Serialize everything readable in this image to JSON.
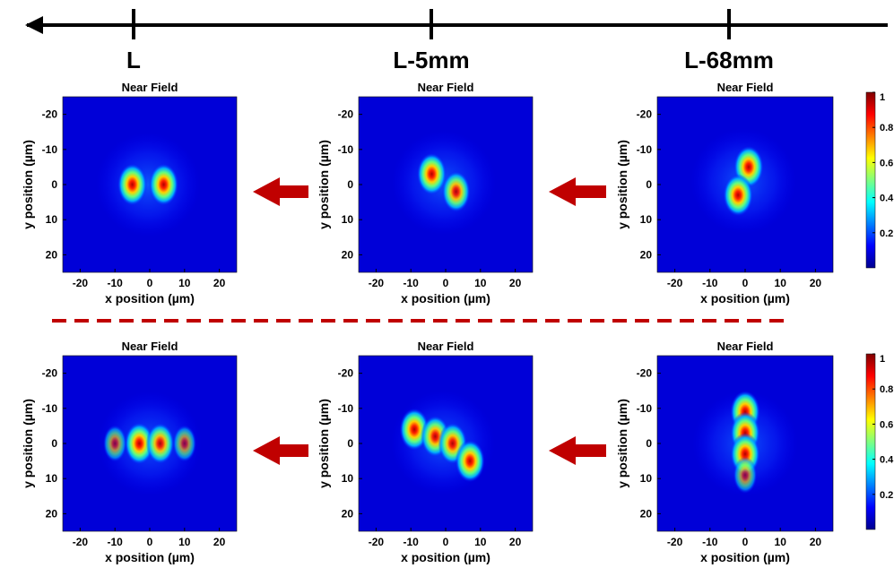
{
  "figure": {
    "stage_labels": [
      "L",
      "L-5mm",
      "L-68mm"
    ],
    "plot_title": "Near Field",
    "xlabel": "x position (µm)",
    "ylabel": "y position (µm)"
  },
  "chart_data": [
    {
      "type": "heatmap",
      "row": 1,
      "stage": "L",
      "title": "Near Field",
      "xlabel": "x position (µm)",
      "ylabel": "y position (µm)",
      "xlim": [
        -25,
        25
      ],
      "ylim": [
        -25,
        25
      ],
      "xticks": [
        -20,
        -10,
        0,
        10,
        20
      ],
      "yticks": [
        -20,
        -10,
        0,
        10,
        20
      ],
      "y_axis_inverted": true,
      "peaks": [
        {
          "x": -5,
          "y": 0,
          "intensity": 1.0
        },
        {
          "x": 4,
          "y": 0,
          "intensity": 1.0
        }
      ]
    },
    {
      "type": "heatmap",
      "row": 1,
      "stage": "L-5mm",
      "title": "Near Field",
      "xlabel": "x position (µm)",
      "ylabel": "y position (µm)",
      "xlim": [
        -25,
        25
      ],
      "ylim": [
        -25,
        25
      ],
      "xticks": [
        -20,
        -10,
        0,
        10,
        20
      ],
      "yticks": [
        -20,
        -10,
        0,
        10,
        20
      ],
      "y_axis_inverted": true,
      "peaks": [
        {
          "x": -4,
          "y": -3,
          "intensity": 1.0
        },
        {
          "x": 3,
          "y": 2,
          "intensity": 0.9
        }
      ]
    },
    {
      "type": "heatmap",
      "row": 1,
      "stage": "L-68mm",
      "title": "Near Field",
      "xlabel": "x position (µm)",
      "ylabel": "y position (µm)",
      "xlim": [
        -25,
        25
      ],
      "ylim": [
        -25,
        25
      ],
      "xticks": [
        -20,
        -10,
        0,
        10,
        20
      ],
      "yticks": [
        -20,
        -10,
        0,
        10,
        20
      ],
      "y_axis_inverted": true,
      "colorbar": {
        "range": [
          0,
          1
        ],
        "ticks": [
          0.2,
          0.4,
          0.6,
          0.8,
          1
        ]
      },
      "peaks": [
        {
          "x": 1,
          "y": -5,
          "intensity": 1.0
        },
        {
          "x": -2,
          "y": 3,
          "intensity": 1.0
        }
      ]
    },
    {
      "type": "heatmap",
      "row": 2,
      "stage": "L",
      "title": "Near Field",
      "xlabel": "x position (µm)",
      "ylabel": "y position (µm)",
      "xlim": [
        -25,
        25
      ],
      "ylim": [
        -25,
        25
      ],
      "xticks": [
        -20,
        -10,
        0,
        10,
        20
      ],
      "yticks": [
        -20,
        -10,
        0,
        10,
        20
      ],
      "y_axis_inverted": true,
      "peaks": [
        {
          "x": -3,
          "y": 0,
          "intensity": 1.0
        },
        {
          "x": 3,
          "y": 0,
          "intensity": 0.9
        },
        {
          "x": -10,
          "y": 0,
          "intensity": 0.5
        },
        {
          "x": 10,
          "y": 0,
          "intensity": 0.5
        }
      ]
    },
    {
      "type": "heatmap",
      "row": 2,
      "stage": "L-5mm",
      "title": "Near Field",
      "xlabel": "x position (µm)",
      "ylabel": "y position (µm)",
      "xlim": [
        -25,
        25
      ],
      "ylim": [
        -25,
        25
      ],
      "xticks": [
        -20,
        -10,
        0,
        10,
        20
      ],
      "yticks": [
        -20,
        -10,
        0,
        10,
        20
      ],
      "y_axis_inverted": true,
      "peaks": [
        {
          "x": -9,
          "y": -4,
          "intensity": 1.0
        },
        {
          "x": -3,
          "y": -2,
          "intensity": 0.95
        },
        {
          "x": 2,
          "y": 0,
          "intensity": 0.95
        },
        {
          "x": 7,
          "y": 5,
          "intensity": 1.0
        }
      ]
    },
    {
      "type": "heatmap",
      "row": 2,
      "stage": "L-68mm",
      "title": "Near Field",
      "xlabel": "x position (µm)",
      "ylabel": "y position (µm)",
      "xlim": [
        -25,
        25
      ],
      "ylim": [
        -25,
        25
      ],
      "xticks": [
        -20,
        -10,
        0,
        10,
        20
      ],
      "yticks": [
        -20,
        -10,
        0,
        10,
        20
      ],
      "y_axis_inverted": true,
      "colorbar": {
        "range": [
          0,
          1
        ],
        "ticks": [
          0.2,
          0.4,
          0.6,
          0.8,
          1
        ]
      },
      "peaks": [
        {
          "x": 0,
          "y": -9,
          "intensity": 1.0
        },
        {
          "x": 0,
          "y": -3,
          "intensity": 1.0
        },
        {
          "x": 0,
          "y": 3,
          "intensity": 1.0
        },
        {
          "x": 0,
          "y": 9,
          "intensity": 0.5
        }
      ]
    }
  ]
}
